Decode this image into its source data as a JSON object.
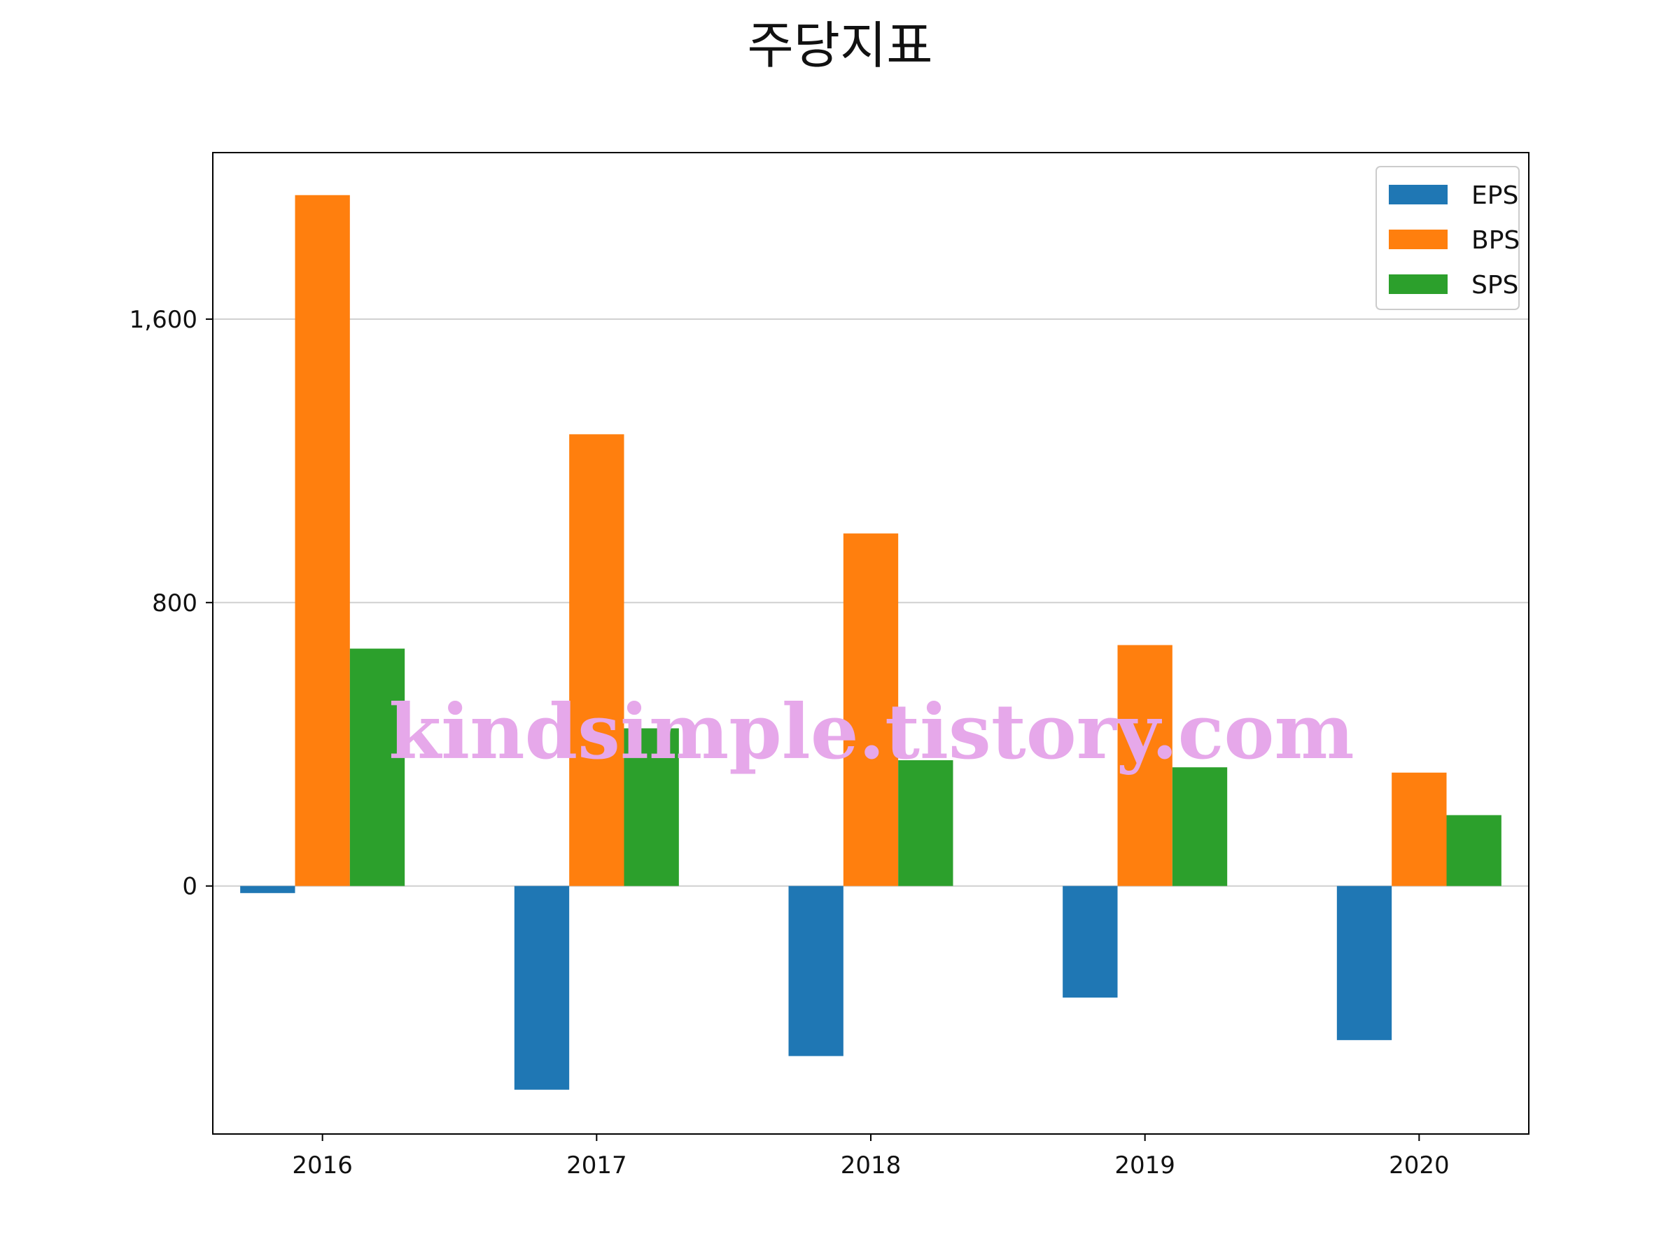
{
  "chart_data": {
    "type": "bar",
    "title": "주당지표",
    "categories": [
      "2016",
      "2017",
      "2018",
      "2019",
      "2020"
    ],
    "series": [
      {
        "name": "EPS",
        "color": "#1f77b4",
        "values": [
          -20,
          -575,
          -480,
          -315,
          -435
        ]
      },
      {
        "name": "BPS",
        "color": "#ff7f0e",
        "values": [
          1950,
          1275,
          995,
          680,
          320
        ]
      },
      {
        "name": "SPS",
        "color": "#2ca02c",
        "values": [
          670,
          445,
          355,
          335,
          200
        ]
      }
    ],
    "ylim": [
      -700,
      2070
    ],
    "yticks": [
      0,
      800,
      1600
    ],
    "ytick_labels": [
      "0",
      "800",
      "1,600"
    ],
    "grid": "horizontal",
    "legend_position": "top-right",
    "xlabel": "",
    "ylabel": ""
  },
  "watermark": "kindsimple.tistory.com"
}
